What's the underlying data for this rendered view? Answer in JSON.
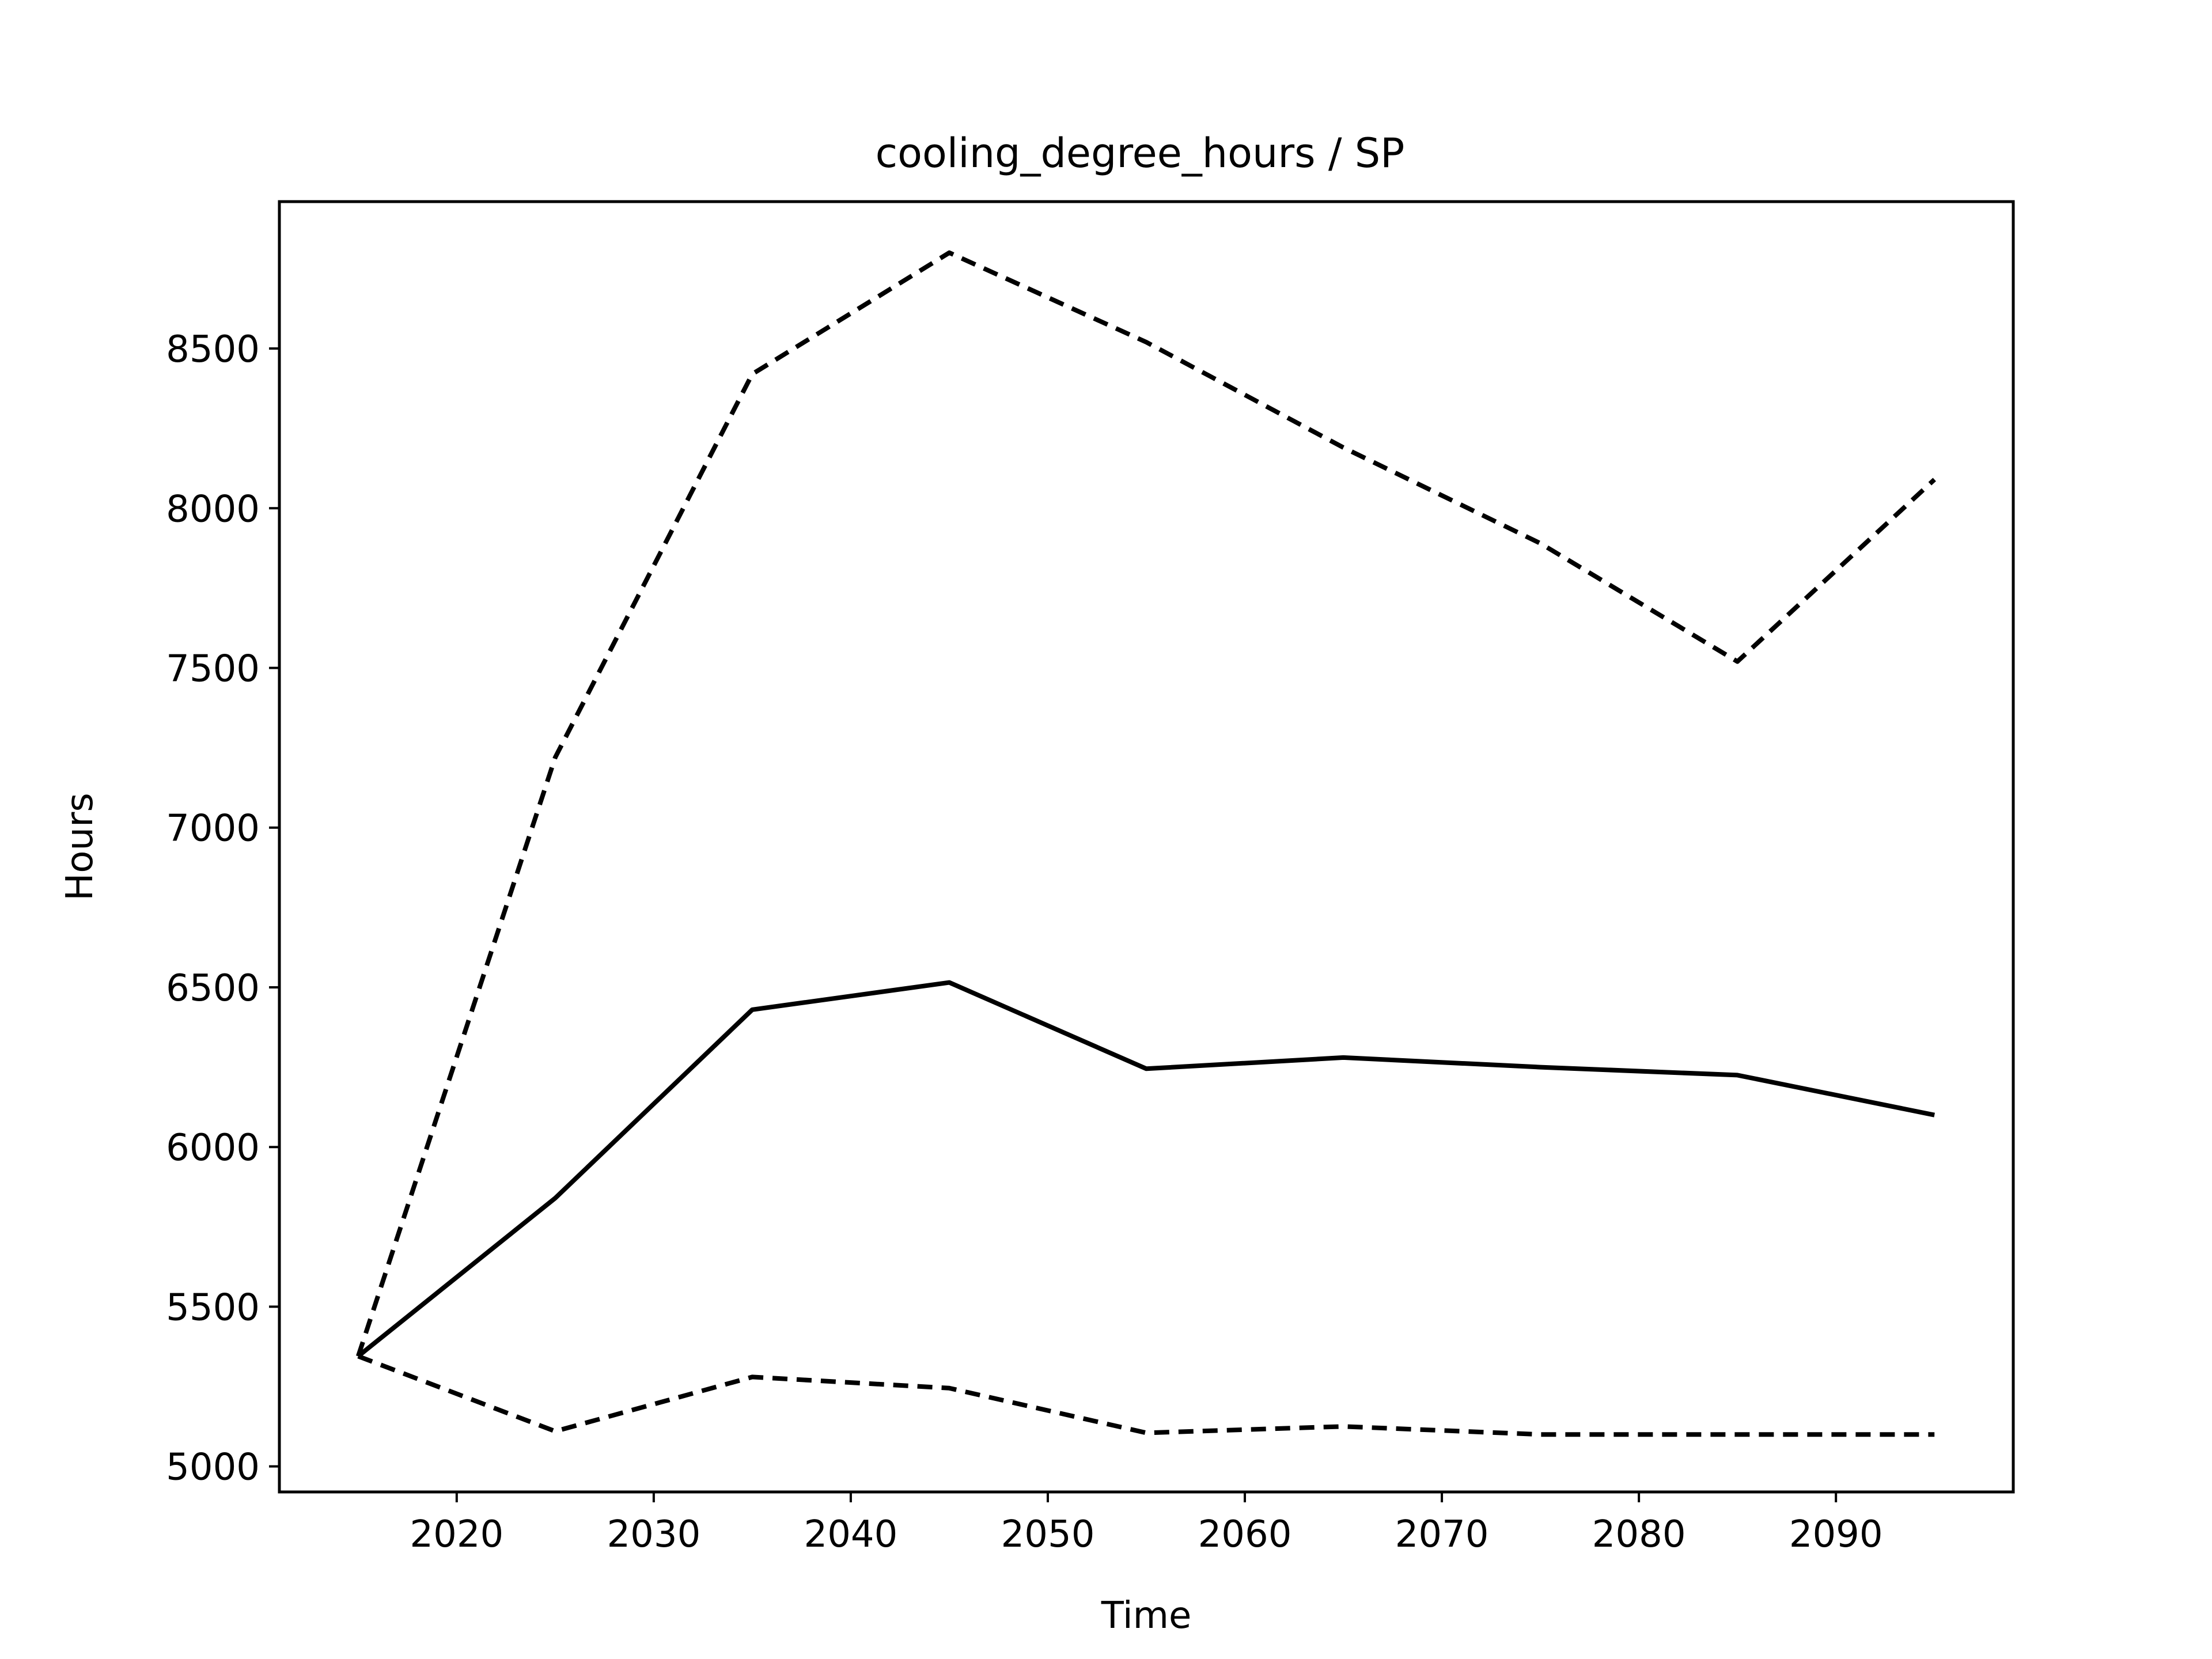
{
  "chart_data": {
    "type": "line",
    "title": "cooling_degree_hours / SP",
    "xlabel": "Time",
    "ylabel": "Hours",
    "xlim": [
      2011,
      2099
    ],
    "ylim": [
      4920,
      8960
    ],
    "xticks": [
      2020,
      2030,
      2040,
      2050,
      2060,
      2070,
      2080,
      2090
    ],
    "yticks": [
      5000,
      5500,
      6000,
      6500,
      7000,
      7500,
      8000,
      8500
    ],
    "x": [
      2015,
      2025,
      2035,
      2045,
      2055,
      2065,
      2075,
      2085,
      2095
    ],
    "series": [
      {
        "style": "dashed",
        "color": "#000000",
        "values": [
          5345,
          7220,
          8420,
          8800,
          8520,
          8190,
          7890,
          7520,
          8090
        ]
      },
      {
        "style": "solid",
        "color": "#000000",
        "values": [
          5345,
          5840,
          6430,
          6515,
          6245,
          6280,
          6250,
          6225,
          6100
        ]
      },
      {
        "style": "dashed",
        "color": "#000000",
        "values": [
          5345,
          5110,
          5280,
          5245,
          5105,
          5125,
          5100,
          5100,
          5100
        ]
      }
    ],
    "grid": false,
    "legend": "none"
  }
}
